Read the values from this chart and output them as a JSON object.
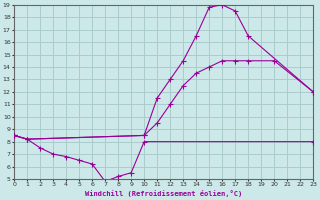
{
  "xlabel": "Windchill (Refroidissement éolien,°C)",
  "bg_color": "#cce8e8",
  "grid_color": "#aacccc",
  "line_color": "#990099",
  "xmin": 0,
  "xmax": 23,
  "ymin": 5,
  "ymax": 19,
  "line1_x": [
    0,
    1,
    10,
    11,
    12,
    13,
    14,
    15,
    16,
    17,
    18,
    23
  ],
  "line1_y": [
    8.5,
    8.2,
    8.5,
    11.5,
    13.0,
    14.5,
    16.5,
    18.8,
    19.0,
    18.5,
    16.5,
    12.0
  ],
  "line2_x": [
    0,
    1,
    10,
    11,
    12,
    13,
    14,
    15,
    16,
    17,
    18,
    20,
    23
  ],
  "line2_y": [
    8.5,
    8.2,
    8.5,
    9.5,
    11.0,
    12.5,
    13.5,
    14.0,
    14.5,
    14.5,
    14.5,
    14.5,
    12.0
  ],
  "line3_x": [
    0,
    1,
    2,
    3,
    4,
    5,
    6,
    7,
    8,
    9,
    10,
    23
  ],
  "line3_y": [
    8.5,
    8.2,
    7.5,
    7.0,
    6.8,
    6.5,
    6.2,
    4.8,
    5.2,
    5.5,
    8.0,
    8.0
  ]
}
